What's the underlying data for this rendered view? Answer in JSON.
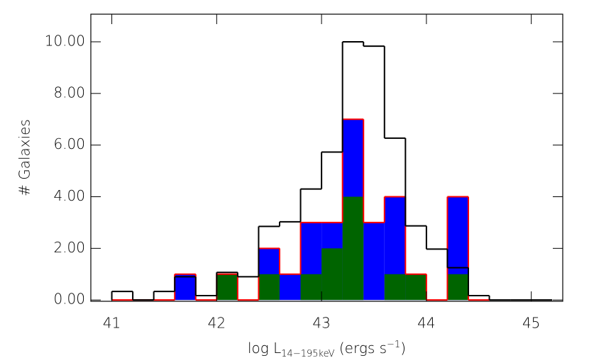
{
  "chart_data": {
    "type": "histogram",
    "xlabel": {
      "main": "log L",
      "sub": "14−195keV",
      "mid": " (ergs s",
      "sup": "−1",
      "end": ")"
    },
    "ylabel": "# Galaxies",
    "bins": [
      41.0,
      41.2,
      41.4,
      41.6,
      41.8,
      42.0,
      42.2,
      42.4,
      42.6,
      42.8,
      43.0,
      43.2,
      43.4,
      43.6,
      43.8,
      44.0,
      44.2,
      44.4,
      44.6,
      44.8,
      45.0,
      45.2
    ],
    "series": [
      {
        "color": "#0000ff",
        "edgecolor": "#ff0000",
        "filled": true,
        "values": [
          0,
          0,
          0,
          1,
          0,
          1,
          0,
          2,
          1,
          3,
          3,
          7,
          3,
          4,
          1,
          0,
          4,
          0,
          null,
          null,
          null
        ]
      },
      {
        "color": "#006400",
        "filled": true,
        "values": [
          0,
          0,
          0,
          0,
          0,
          1,
          0,
          1,
          0,
          1,
          2,
          4,
          0,
          1,
          1,
          0,
          1,
          0,
          null,
          null,
          null
        ]
      },
      {
        "color": "#000000",
        "filled": false,
        "values": [
          0.33,
          0,
          0.33,
          0.9,
          0.17,
          1.07,
          0.9,
          2.85,
          3.03,
          4.3,
          5.73,
          10.0,
          9.83,
          6.27,
          2.87,
          1.97,
          1.25,
          0.17,
          0,
          0,
          0
        ]
      }
    ],
    "xlim": [
      40.8,
      45.3
    ],
    "ylim": [
      -0.05,
      11.07
    ],
    "xticks": [
      41,
      42,
      43,
      44,
      45
    ],
    "yticks": [
      {
        "value": 0,
        "label": "0.00"
      },
      {
        "value": 2,
        "label": "2.00"
      },
      {
        "value": 4,
        "label": "4.00"
      },
      {
        "value": 6,
        "label": "6.00"
      },
      {
        "value": 8,
        "label": "8.00"
      },
      {
        "value": 10,
        "label": "10.00"
      }
    ]
  }
}
